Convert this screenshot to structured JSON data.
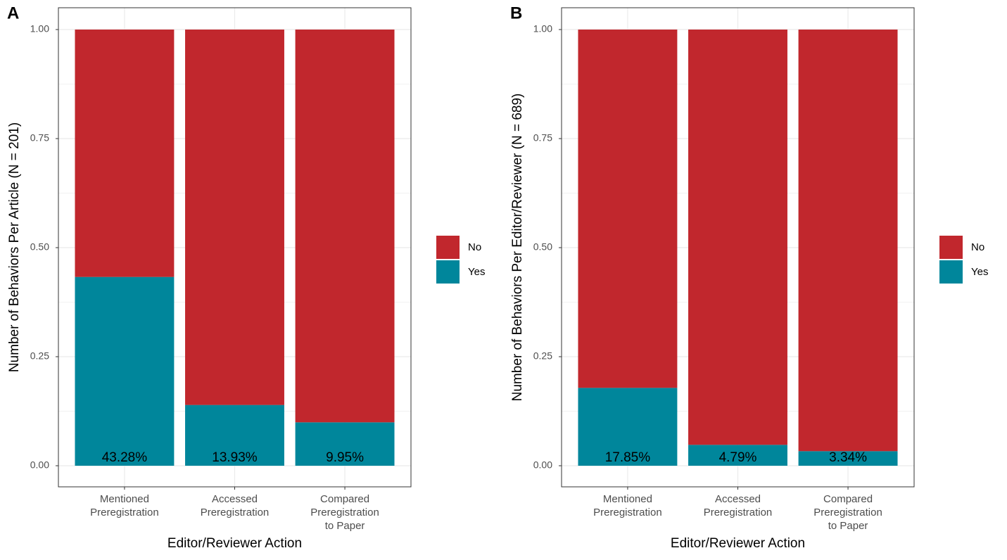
{
  "chart_data": [
    {
      "type": "stacked_bar",
      "panel_label": "A",
      "x_label": "Editor/Reviewer Action",
      "y_label": "Number of Behaviors Per Article (N = 201)",
      "categories": [
        "Mentioned\nPreregistration",
        "Accessed\nPreregistration",
        "Compared\nPreregistration\nto Paper"
      ],
      "series": [
        {
          "name": "No",
          "color": "#c1272d",
          "values": [
            0.5672,
            0.8607,
            0.9005
          ]
        },
        {
          "name": "Yes",
          "color": "#00869b",
          "values": [
            0.4328,
            0.1393,
            0.0995
          ],
          "value_labels": [
            "43.28%",
            "13.93%",
            "9.95%"
          ]
        }
      ],
      "ylim": [
        0,
        1
      ],
      "yticks": [
        {
          "value": 0,
          "label": "0.00"
        },
        {
          "value": 0.25,
          "label": "0.25"
        },
        {
          "value": 0.5,
          "label": "0.50"
        },
        {
          "value": 0.75,
          "label": "0.75"
        },
        {
          "value": 1,
          "label": "1.00"
        }
      ],
      "grid": true,
      "legend": "right"
    },
    {
      "type": "stacked_bar",
      "panel_label": "B",
      "x_label": "Editor/Reviewer Action",
      "y_label": "Number of Behaviors Per Editor/Reviewer (N = 689)",
      "categories": [
        "Mentioned\nPreregistration",
        "Accessed\nPreregistration",
        "Compared\nPreregistration\nto Paper"
      ],
      "series": [
        {
          "name": "No",
          "color": "#c1272d",
          "values": [
            0.8215,
            0.9521,
            0.9666
          ]
        },
        {
          "name": "Yes",
          "color": "#00869b",
          "values": [
            0.1785,
            0.0479,
            0.0334
          ],
          "value_labels": [
            "17.85%",
            "4.79%",
            "3.34%"
          ]
        }
      ],
      "ylim": [
        0,
        1
      ],
      "yticks": [
        {
          "value": 0,
          "label": "0.00"
        },
        {
          "value": 0.25,
          "label": "0.25"
        },
        {
          "value": 0.5,
          "label": "0.50"
        },
        {
          "value": 0.75,
          "label": "0.75"
        },
        {
          "value": 1,
          "label": "1.00"
        }
      ],
      "grid": true,
      "legend": "right"
    }
  ]
}
